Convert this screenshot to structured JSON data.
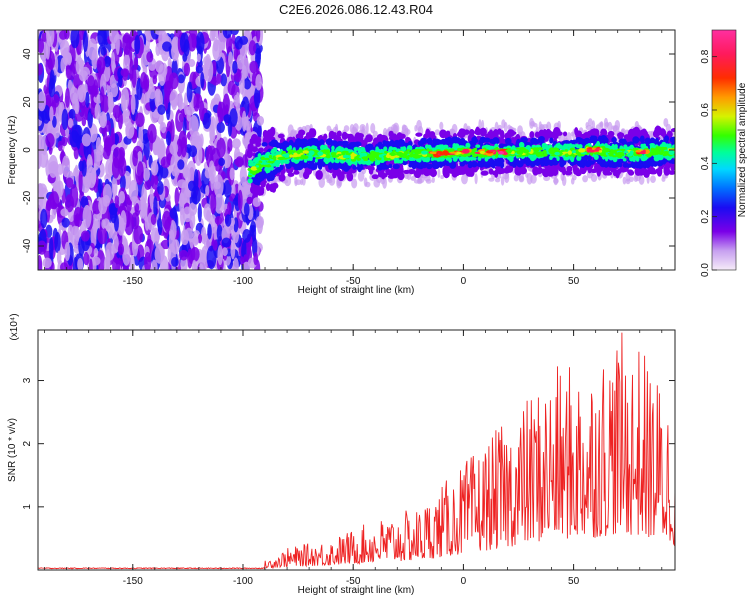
{
  "chart_data": [
    {
      "type": "heatmap",
      "title": "C2E6.2026.086.12.43.R04",
      "xlabel": "Height of straight line (km)",
      "ylabel": "Frequency (Hz)",
      "xlim": [
        -193,
        96
      ],
      "ylim": [
        -50,
        50
      ],
      "xticks": [
        -150,
        -100,
        -50,
        0,
        50
      ],
      "yticks": [
        -40,
        -20,
        0,
        20,
        40
      ],
      "colorbar": {
        "label": "Normalized spectral amplitude",
        "range": [
          0.0,
          0.9
        ],
        "ticks": [
          0.0,
          0.2,
          0.4,
          0.6,
          0.8
        ],
        "colors": [
          "#f2d9f2",
          "#c79bf0",
          "#7a00e8",
          "#1a0cf2",
          "#0070ff",
          "#00d8ff",
          "#00ff9a",
          "#34ff00",
          "#d6f200",
          "#ff9a00",
          "#ff2d00",
          "#ff1a5c",
          "#ff2fa0"
        ]
      },
      "trace": {
        "description_points_x": [
          -97,
          -90,
          -80,
          -70,
          -60,
          -50,
          -40,
          -30,
          -20,
          -10,
          0,
          10,
          20,
          30,
          40,
          50,
          60,
          70,
          80,
          90,
          96
        ],
        "description_points_f": [
          -9,
          -5,
          -2,
          -1.5,
          -2,
          -2.5,
          -2.5,
          -2,
          -1.5,
          -1.5,
          -1,
          -1,
          -1,
          -0.5,
          -1,
          -1,
          0,
          -1.5,
          -1,
          -0.5,
          -0.5
        ],
        "peak_amplitude_x_ranges": [
          [
            -15,
            20
          ],
          [
            55,
            62
          ],
          [
            78,
            90
          ]
        ]
      },
      "noise_region_x": [
        -193,
        -92
      ]
    },
    {
      "type": "line",
      "series": [
        {
          "name": "SNR",
          "color": "#ee2222"
        }
      ],
      "xlabel": "Height of straight line (km)",
      "ylabel": "SNR (10 * v/v)",
      "y_multiplier": "(x10⁴)",
      "xlim": [
        -193,
        96
      ],
      "ylim": [
        0,
        3.8
      ],
      "xticks": [
        -150,
        -100,
        -50,
        0,
        50
      ],
      "yticks": [
        1,
        2,
        3
      ],
      "envelope_x": [
        -193,
        -90,
        -80,
        -60,
        -40,
        -20,
        0,
        20,
        40,
        60,
        70,
        80,
        90,
        96
      ],
      "envelope_max": [
        0.03,
        0.15,
        0.35,
        0.5,
        0.8,
        1.0,
        1.7,
        2.4,
        3.2,
        3.4,
        3.8,
        3.6,
        3.0,
        2.6
      ]
    }
  ]
}
